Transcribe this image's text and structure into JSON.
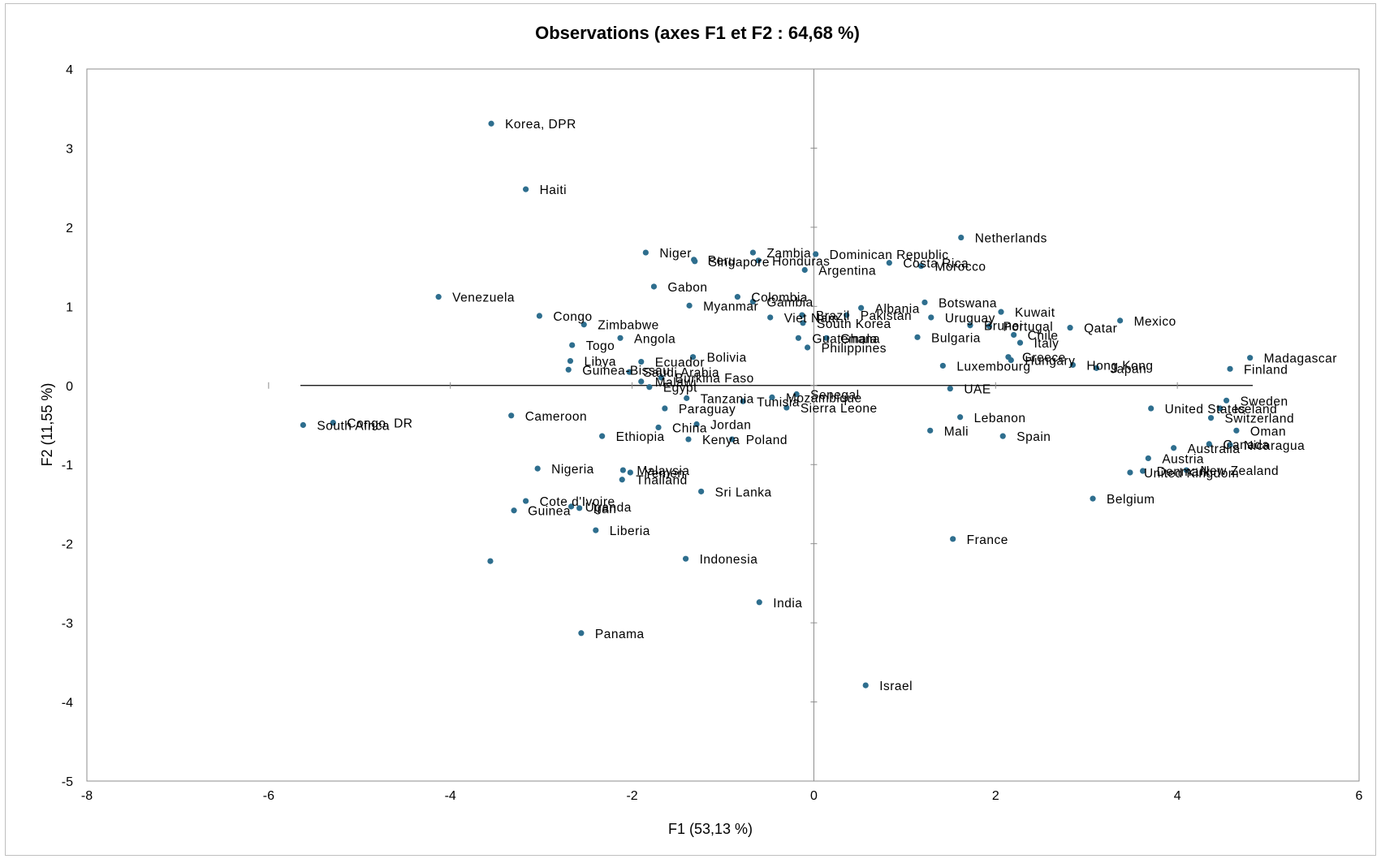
{
  "chart_data": {
    "type": "scatter",
    "title": "Observations (axes F1 et F2 : 64,68 %)",
    "xlabel": "F1 (53,13 %)",
    "ylabel": "F2 (11,55 %)",
    "xlim": [
      -8,
      6
    ],
    "ylim": [
      -5,
      4
    ],
    "x_ticks": [
      "-8",
      "-6",
      "-4",
      "-2",
      "0",
      "2",
      "4",
      "6"
    ],
    "y_ticks": [
      "4",
      "3",
      "2",
      "1",
      "0",
      "-1",
      "-2",
      "-3",
      "-4",
      "-5"
    ],
    "grid": false,
    "marker_color": "#2e6e8e",
    "points": [
      {
        "label": "Korea, DPR",
        "x": -3.55,
        "y": 3.31
      },
      {
        "label": "Haiti",
        "x": -3.17,
        "y": 2.48
      },
      {
        "label": "Netherlands",
        "x": 1.62,
        "y": 1.87
      },
      {
        "label": "Zambia",
        "x": -0.67,
        "y": 1.68
      },
      {
        "label": "Dominican Republic",
        "x": 0.02,
        "y": 1.66
      },
      {
        "label": "Niger",
        "x": -1.85,
        "y": 1.68
      },
      {
        "label": "Peru",
        "x": -1.32,
        "y": 1.59
      },
      {
        "label": "Singapore",
        "x": -1.31,
        "y": 1.57
      },
      {
        "label": "Honduras",
        "x": -0.61,
        "y": 1.58
      },
      {
        "label": "Costa Rica",
        "x": 0.83,
        "y": 1.55
      },
      {
        "label": "Morocco",
        "x": 1.18,
        "y": 1.51
      },
      {
        "label": "Argentina",
        "x": -0.1,
        "y": 1.46
      },
      {
        "label": "Gabon",
        "x": -1.76,
        "y": 1.25
      },
      {
        "label": "Venezuela",
        "x": -4.13,
        "y": 1.12
      },
      {
        "label": "Colombia",
        "x": -0.84,
        "y": 1.12
      },
      {
        "label": "Gambia",
        "x": -0.67,
        "y": 1.06
      },
      {
        "label": "Botswana",
        "x": 1.22,
        "y": 1.05
      },
      {
        "label": "Myanmar",
        "x": -1.37,
        "y": 1.01
      },
      {
        "label": "Albania",
        "x": 0.52,
        "y": 0.98
      },
      {
        "label": "Kuwait",
        "x": 2.06,
        "y": 0.93
      },
      {
        "label": "Brazil",
        "x": -0.13,
        "y": 0.89
      },
      {
        "label": "Pakistan",
        "x": 0.36,
        "y": 0.89
      },
      {
        "label": "Congo",
        "x": -3.02,
        "y": 0.88
      },
      {
        "label": "Viet Nam",
        "x": -0.48,
        "y": 0.86
      },
      {
        "label": "Uruguay",
        "x": 1.29,
        "y": 0.86
      },
      {
        "label": "South Korea",
        "x": -0.12,
        "y": 0.79
      },
      {
        "label": "Mexico",
        "x": 3.37,
        "y": 0.82
      },
      {
        "label": "Zimbabwe",
        "x": -2.53,
        "y": 0.77
      },
      {
        "label": "Brunei",
        "x": 1.72,
        "y": 0.76
      },
      {
        "label": "Portugal",
        "x": 1.93,
        "y": 0.75
      },
      {
        "label": "Qatar",
        "x": 2.82,
        "y": 0.73
      },
      {
        "label": "Chile",
        "x": 2.2,
        "y": 0.64
      },
      {
        "label": "Guatemala",
        "x": -0.17,
        "y": 0.6
      },
      {
        "label": "Ghana",
        "x": 0.14,
        "y": 0.6
      },
      {
        "label": "Bulgaria",
        "x": 1.14,
        "y": 0.61
      },
      {
        "label": "Angola",
        "x": -2.13,
        "y": 0.6
      },
      {
        "label": "Italy",
        "x": 2.27,
        "y": 0.54
      },
      {
        "label": "Togo",
        "x": -2.66,
        "y": 0.51
      },
      {
        "label": "Philippines",
        "x": -0.07,
        "y": 0.48
      },
      {
        "label": "Madagascar",
        "x": 4.8,
        "y": 0.35
      },
      {
        "label": "Bolivia",
        "x": -1.33,
        "y": 0.36
      },
      {
        "label": "Greece",
        "x": 2.14,
        "y": 0.36
      },
      {
        "label": "Hungary",
        "x": 2.17,
        "y": 0.32
      },
      {
        "label": "Libya",
        "x": -2.68,
        "y": 0.31
      },
      {
        "label": "Ecuador",
        "x": -1.9,
        "y": 0.3
      },
      {
        "label": "Hong Kong",
        "x": 2.85,
        "y": 0.26
      },
      {
        "label": "Luxembourg",
        "x": 1.42,
        "y": 0.25
      },
      {
        "label": "Japan",
        "x": 3.11,
        "y": 0.22
      },
      {
        "label": "Finland",
        "x": 4.58,
        "y": 0.21
      },
      {
        "label": "Guinea-Bissau",
        "x": -2.7,
        "y": 0.2
      },
      {
        "label": "Saudi Arabia",
        "x": -2.03,
        "y": 0.17
      },
      {
        "label": "Burkina Faso",
        "x": -1.68,
        "y": 0.1
      },
      {
        "label": "Malawi",
        "x": -1.9,
        "y": 0.05
      },
      {
        "label": "Egypt",
        "x": -1.81,
        "y": -0.02
      },
      {
        "label": "UAE",
        "x": 1.5,
        "y": -0.04
      },
      {
        "label": "Senegal",
        "x": -0.19,
        "y": -0.11
      },
      {
        "label": "Mozambique",
        "x": -0.46,
        "y": -0.15
      },
      {
        "label": "Tanzania",
        "x": -1.4,
        "y": -0.16
      },
      {
        "label": "Tunisia",
        "x": -0.78,
        "y": -0.2
      },
      {
        "label": "Sweden",
        "x": 4.54,
        "y": -0.19
      },
      {
        "label": "Sierra Leone",
        "x": -0.3,
        "y": -0.28
      },
      {
        "label": "Paraguay",
        "x": -1.64,
        "y": -0.29
      },
      {
        "label": "United States",
        "x": 3.71,
        "y": -0.29
      },
      {
        "label": "Iceland",
        "x": 4.47,
        "y": -0.29
      },
      {
        "label": "Cameroon",
        "x": -3.33,
        "y": -0.38
      },
      {
        "label": "Lebanon",
        "x": 1.61,
        "y": -0.4
      },
      {
        "label": "Switzerland",
        "x": 4.37,
        "y": -0.41
      },
      {
        "label": "Congo, DR",
        "x": -5.29,
        "y": -0.47
      },
      {
        "label": "South Africa",
        "x": -5.62,
        "y": -0.5
      },
      {
        "label": "China",
        "x": -1.71,
        "y": -0.53
      },
      {
        "label": "Jordan",
        "x": -1.29,
        "y": -0.49
      },
      {
        "label": "Oman",
        "x": 4.65,
        "y": -0.57
      },
      {
        "label": "Mali",
        "x": 1.28,
        "y": -0.57
      },
      {
        "label": "Ethiopia",
        "x": -2.33,
        "y": -0.64
      },
      {
        "label": "Spain",
        "x": 2.08,
        "y": -0.64
      },
      {
        "label": "Kenya",
        "x": -1.38,
        "y": -0.68
      },
      {
        "label": "Poland",
        "x": -0.9,
        "y": -0.68
      },
      {
        "label": "Canada",
        "x": 4.35,
        "y": -0.74
      },
      {
        "label": "Nicaragua",
        "x": 4.58,
        "y": -0.75
      },
      {
        "label": "Australia",
        "x": 3.96,
        "y": -0.79
      },
      {
        "label": "Austria",
        "x": 3.68,
        "y": -0.92
      },
      {
        "label": "Nigeria",
        "x": -3.04,
        "y": -1.05
      },
      {
        "label": "Malaysia",
        "x": -2.1,
        "y": -1.07
      },
      {
        "label": "Yemen",
        "x": -2.02,
        "y": -1.1
      },
      {
        "label": "Denmark",
        "x": 3.62,
        "y": -1.08
      },
      {
        "label": "New Zealand",
        "x": 4.1,
        "y": -1.07
      },
      {
        "label": "United Kingdom",
        "x": 3.48,
        "y": -1.1
      },
      {
        "label": "Thailand",
        "x": -2.11,
        "y": -1.19
      },
      {
        "label": "Sri Lanka",
        "x": -1.24,
        "y": -1.34
      },
      {
        "label": "Belgium",
        "x": 3.07,
        "y": -1.43
      },
      {
        "label": "Cote d'Ivoire",
        "x": -3.17,
        "y": -1.46
      },
      {
        "label": "Uganda",
        "x": -2.67,
        "y": -1.53
      },
      {
        "label": "Iran",
        "x": -2.58,
        "y": -1.55
      },
      {
        "label": "Guinea",
        "x": -3.3,
        "y": -1.58
      },
      {
        "label": "Liberia",
        "x": -2.4,
        "y": -1.83
      },
      {
        "label": "France",
        "x": 1.53,
        "y": -1.94
      },
      {
        "label": "Indonesia",
        "x": -1.41,
        "y": -2.19
      },
      {
        "label": "",
        "x": -3.56,
        "y": -2.22
      },
      {
        "label": "India",
        "x": -0.6,
        "y": -2.74
      },
      {
        "label": "Panama",
        "x": -2.56,
        "y": -3.13
      },
      {
        "label": "Israel",
        "x": 0.57,
        "y": -3.79
      }
    ]
  }
}
